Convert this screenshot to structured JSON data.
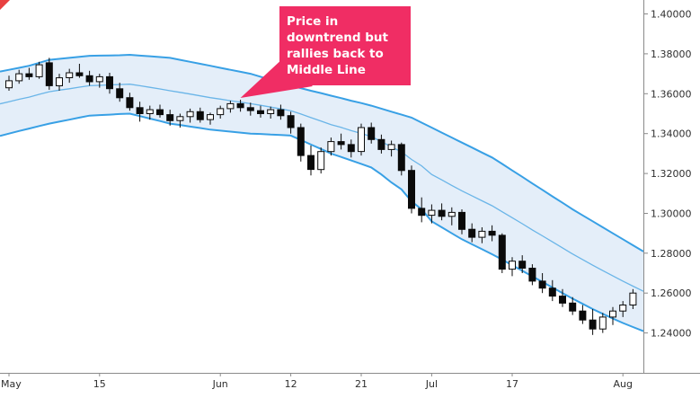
{
  "annotation": {
    "text": "Price in downtrend but rallies back to Middle Line",
    "lines": [
      "Price in",
      "downtrend but",
      "rallies back to",
      "Middle Line"
    ],
    "background_color": "#f02d64",
    "text_color": "#ffffff"
  },
  "colors": {
    "background": "#ffffff",
    "band_outer_line": "#38a0e5",
    "band_middle_line": "#6ab5e8",
    "band_fill": "#e4eef9",
    "candle_up": "#ffffff",
    "candle_down": "#0a0a0a",
    "candle_outline": "#0a0a0a",
    "axis_line": "#8a8a8a",
    "axis_text": "#2e2e2e",
    "corner_marker": "#e84040"
  },
  "chart_data": {
    "type": "candlestick",
    "overlay": "bollinger-bands",
    "title": "",
    "xlabel": "",
    "ylabel": "",
    "grid": false,
    "legend": false,
    "ylim": [
      1.22,
      1.407
    ],
    "y_axis_labels": [
      {
        "text": "1.40000",
        "value": 1.4
      },
      {
        "text": "1.38000",
        "value": 1.38
      },
      {
        "text": "1.36000",
        "value": 1.36
      },
      {
        "text": "1.34000",
        "value": 1.34
      },
      {
        "text": "1.32000",
        "value": 1.32
      },
      {
        "text": "1.30000",
        "value": 1.3
      },
      {
        "text": "1.28000",
        "value": 1.28
      },
      {
        "text": "1.26000",
        "value": 1.26
      },
      {
        "text": "1.24000",
        "value": 1.24
      }
    ],
    "x_axis_labels": [
      {
        "text": "May",
        "index": 0
      },
      {
        "text": "15",
        "index": 9
      },
      {
        "text": "Jun",
        "index": 21
      },
      {
        "text": "12",
        "index": 28
      },
      {
        "text": "21",
        "index": 35
      },
      {
        "text": "Jul",
        "index": 42
      },
      {
        "text": "17",
        "index": 50
      },
      {
        "text": "Aug",
        "index": 61
      }
    ],
    "annotation_target_index": 23,
    "candles_ohlc": [
      [
        1.363,
        1.369,
        1.3615,
        1.3665
      ],
      [
        1.3665,
        1.372,
        1.365,
        1.37
      ],
      [
        1.37,
        1.373,
        1.367,
        1.3685
      ],
      [
        1.3685,
        1.376,
        1.3675,
        1.3745
      ],
      [
        1.3755,
        1.378,
        1.362,
        1.364
      ],
      [
        1.364,
        1.37,
        1.3615,
        1.368
      ],
      [
        1.368,
        1.3725,
        1.3655,
        1.3705
      ],
      [
        1.3705,
        1.375,
        1.368,
        1.369
      ],
      [
        1.369,
        1.3715,
        1.364,
        1.366
      ],
      [
        1.366,
        1.37,
        1.363,
        1.3685
      ],
      [
        1.3685,
        1.3705,
        1.36,
        1.3625
      ],
      [
        1.3625,
        1.3655,
        1.356,
        1.358
      ],
      [
        1.358,
        1.3605,
        1.3515,
        1.353
      ],
      [
        1.353,
        1.356,
        1.346,
        1.35
      ],
      [
        1.35,
        1.354,
        1.347,
        1.352
      ],
      [
        1.352,
        1.3545,
        1.348,
        1.3495
      ],
      [
        1.3495,
        1.352,
        1.344,
        1.3465
      ],
      [
        1.3465,
        1.35,
        1.343,
        1.3485
      ],
      [
        1.3485,
        1.3525,
        1.3455,
        1.351
      ],
      [
        1.351,
        1.353,
        1.3455,
        1.347
      ],
      [
        1.347,
        1.3505,
        1.3445,
        1.3495
      ],
      [
        1.3495,
        1.354,
        1.3475,
        1.3525
      ],
      [
        1.3525,
        1.3565,
        1.3505,
        1.355
      ],
      [
        1.355,
        1.357,
        1.351,
        1.353
      ],
      [
        1.353,
        1.3555,
        1.349,
        1.3515
      ],
      [
        1.3515,
        1.354,
        1.348,
        1.35
      ],
      [
        1.35,
        1.3535,
        1.3475,
        1.352
      ],
      [
        1.352,
        1.3545,
        1.347,
        1.349
      ],
      [
        1.349,
        1.351,
        1.34,
        1.343
      ],
      [
        1.343,
        1.345,
        1.326,
        1.329
      ],
      [
        1.329,
        1.334,
        1.319,
        1.322
      ],
      [
        1.322,
        1.333,
        1.32,
        1.331
      ],
      [
        1.331,
        1.338,
        1.329,
        1.336
      ],
      [
        1.336,
        1.34,
        1.332,
        1.3345
      ],
      [
        1.3345,
        1.337,
        1.328,
        1.331
      ],
      [
        1.331,
        1.345,
        1.329,
        1.343
      ],
      [
        1.343,
        1.3455,
        1.335,
        1.337
      ],
      [
        1.337,
        1.3395,
        1.33,
        1.332
      ],
      [
        1.332,
        1.3365,
        1.3285,
        1.3345
      ],
      [
        1.3345,
        1.3355,
        1.319,
        1.3215
      ],
      [
        1.3215,
        1.324,
        1.3,
        1.3025
      ],
      [
        1.3025,
        1.308,
        1.2955,
        1.299
      ],
      [
        1.299,
        1.3045,
        1.295,
        1.3015
      ],
      [
        1.3015,
        1.305,
        1.2965,
        1.2985
      ],
      [
        1.2985,
        1.303,
        1.294,
        1.3005
      ],
      [
        1.3005,
        1.302,
        1.2895,
        1.292
      ],
      [
        1.292,
        1.295,
        1.2855,
        1.288
      ],
      [
        1.288,
        1.293,
        1.285,
        1.291
      ],
      [
        1.291,
        1.294,
        1.286,
        1.289
      ],
      [
        1.289,
        1.29,
        1.27,
        1.272
      ],
      [
        1.272,
        1.278,
        1.2685,
        1.276
      ],
      [
        1.276,
        1.279,
        1.27,
        1.2725
      ],
      [
        1.2725,
        1.2745,
        1.264,
        1.266
      ],
      [
        1.266,
        1.27,
        1.26,
        1.2625
      ],
      [
        1.2625,
        1.2665,
        1.256,
        1.2585
      ],
      [
        1.2585,
        1.262,
        1.253,
        1.255
      ],
      [
        1.255,
        1.258,
        1.249,
        1.251
      ],
      [
        1.251,
        1.254,
        1.2445,
        1.2465
      ],
      [
        1.2465,
        1.252,
        1.239,
        1.242
      ],
      [
        1.242,
        1.25,
        1.24,
        1.248
      ],
      [
        1.248,
        1.253,
        1.244,
        1.251
      ],
      [
        1.251,
        1.256,
        1.248,
        1.254
      ],
      [
        1.254,
        1.262,
        1.252,
        1.26
      ]
    ],
    "bands": {
      "upper": [
        1.372,
        1.373,
        1.374,
        1.3755,
        1.377,
        1.3775,
        1.378,
        1.3785,
        1.379,
        1.3791,
        1.3792,
        1.3793,
        1.3795,
        1.3791,
        1.3788,
        1.3784,
        1.378,
        1.377,
        1.376,
        1.375,
        1.374,
        1.373,
        1.372,
        1.371,
        1.37,
        1.3685,
        1.367,
        1.3655,
        1.364,
        1.3628,
        1.3615,
        1.3603,
        1.359,
        1.3578,
        1.3565,
        1.3553,
        1.354,
        1.3525,
        1.351,
        1.3495,
        1.348,
        1.3455,
        1.343,
        1.3405,
        1.338,
        1.3355,
        1.333,
        1.3305,
        1.328,
        1.3248,
        1.3215,
        1.3183,
        1.315,
        1.3118,
        1.3085,
        1.3053,
        1.302,
        1.299,
        1.296,
        1.293,
        1.29,
        1.287,
        1.284
      ],
      "middle": [
        1.356,
        1.3572,
        1.3583,
        1.3597,
        1.361,
        1.3618,
        1.3625,
        1.3633,
        1.364,
        1.3642,
        1.3644,
        1.3646,
        1.3648,
        1.364,
        1.3632,
        1.3624,
        1.3615,
        1.3607,
        1.3598,
        1.3589,
        1.358,
        1.3573,
        1.3565,
        1.3558,
        1.355,
        1.3542,
        1.3533,
        1.3524,
        1.3515,
        1.3498,
        1.348,
        1.3463,
        1.3445,
        1.3431,
        1.3415,
        1.3401,
        1.3385,
        1.336,
        1.3333,
        1.3308,
        1.327,
        1.3238,
        1.3195,
        1.3168,
        1.314,
        1.3113,
        1.3088,
        1.3063,
        1.3038,
        1.3008,
        1.2978,
        1.2948,
        1.2917,
        1.2887,
        1.2857,
        1.2827,
        1.2796,
        1.2768,
        1.274,
        1.2713,
        1.2686,
        1.266,
        1.2635
      ],
      "lower": [
        1.34,
        1.3413,
        1.3425,
        1.3438,
        1.345,
        1.346,
        1.347,
        1.348,
        1.349,
        1.3493,
        1.3495,
        1.3498,
        1.35,
        1.3488,
        1.3475,
        1.3463,
        1.345,
        1.3443,
        1.3435,
        1.3428,
        1.342,
        1.3415,
        1.341,
        1.3405,
        1.34,
        1.3398,
        1.3395,
        1.3393,
        1.339,
        1.3368,
        1.3345,
        1.3323,
        1.33,
        1.3283,
        1.3265,
        1.3248,
        1.323,
        1.3195,
        1.3155,
        1.312,
        1.306,
        1.302,
        1.296,
        1.293,
        1.29,
        1.287,
        1.2845,
        1.282,
        1.2795,
        1.2768,
        1.274,
        1.2712,
        1.2684,
        1.2656,
        1.2628,
        1.26,
        1.2572,
        1.2546,
        1.252,
        1.2496,
        1.2472,
        1.245,
        1.243
      ]
    }
  }
}
